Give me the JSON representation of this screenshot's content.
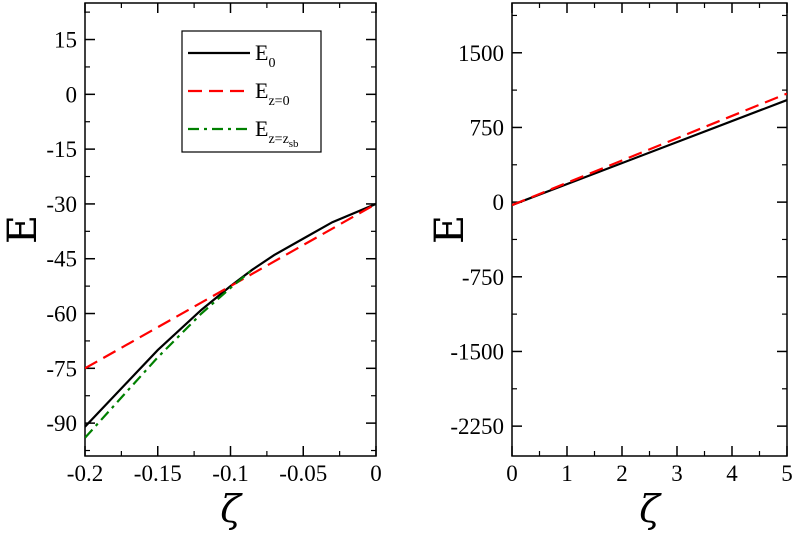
{
  "chart_data": [
    {
      "type": "line",
      "xlabel": "ζ",
      "ylabel": "E",
      "xlim": [
        -0.2,
        0.0
      ],
      "ylim": [
        -99,
        25
      ],
      "xticks": [
        -0.2,
        -0.15,
        -0.1,
        -0.05,
        0
      ],
      "xtick_labels": [
        "-0.2",
        "-0.15",
        "-0.1",
        "-0.05",
        "0"
      ],
      "yticks": [
        15,
        0,
        -15,
        -30,
        -45,
        -60,
        -75,
        -90
      ],
      "ytick_labels": [
        "15",
        "0",
        "-15",
        "-30",
        "-45",
        "-60",
        "-75",
        "-90"
      ],
      "legend": "top-right",
      "grid": false,
      "series": [
        {
          "name": "E0",
          "label_main": "E",
          "label_sub": "0",
          "color": "#000000",
          "dash": "solid",
          "x": [
            -0.2,
            -0.15,
            -0.12,
            -0.1,
            -0.085,
            -0.07,
            -0.05,
            -0.03,
            0.0
          ],
          "y": [
            -91,
            -70,
            -59,
            -52.5,
            -48,
            -44,
            -39.5,
            -35,
            -30
          ]
        },
        {
          "name": "Ez=0",
          "label_main": "E",
          "label_sub": "z=0",
          "color": "#ff0000",
          "dash": "dashed",
          "x": [
            -0.2,
            0.0
          ],
          "y": [
            -75,
            -30
          ]
        },
        {
          "name": "Ez=zsb",
          "label_main": "E",
          "label_sub": "z=z",
          "label_subsub": "sb",
          "color": "#008000",
          "dash": "dashdot",
          "x": [
            -0.2,
            -0.15,
            -0.12,
            -0.1,
            -0.085
          ],
          "y": [
            -94,
            -72,
            -60,
            -53,
            -48
          ]
        }
      ]
    },
    {
      "type": "line",
      "xlabel": "ζ",
      "ylabel": "E",
      "xlim": [
        0,
        5
      ],
      "ylim": [
        -2550,
        2000
      ],
      "xticks": [
        0,
        1,
        2,
        3,
        4,
        5
      ],
      "xtick_labels": [
        "0",
        "1",
        "2",
        "3",
        "4",
        "5"
      ],
      "yticks": [
        1500,
        750,
        0,
        -750,
        -1500,
        -2250
      ],
      "ytick_labels": [
        "1500",
        "750",
        "0",
        "-750",
        "-1500",
        "-2250"
      ],
      "grid": false,
      "series": [
        {
          "color": "#000000",
          "dash": "solid",
          "x": [
            0,
            5
          ],
          "y": [
            -30,
            1025
          ]
        },
        {
          "color": "#ff0000",
          "dash": "dashed",
          "x": [
            0,
            5
          ],
          "y": [
            -30,
            1090
          ]
        }
      ]
    }
  ]
}
